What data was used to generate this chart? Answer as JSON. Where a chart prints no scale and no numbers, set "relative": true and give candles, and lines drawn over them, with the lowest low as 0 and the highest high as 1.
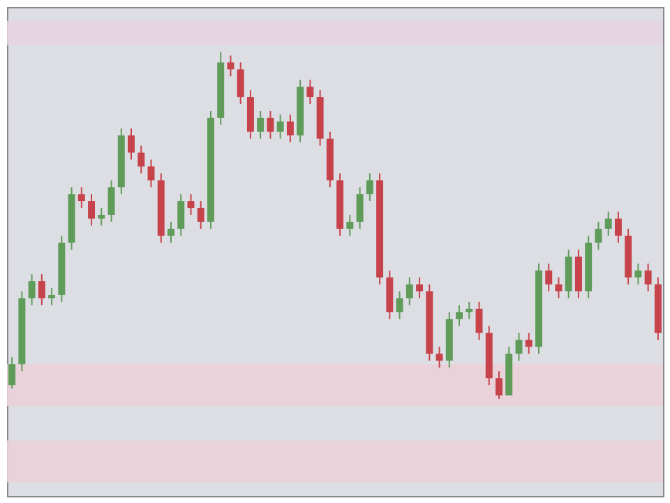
{
  "chart_data": {
    "type": "candlestick",
    "relative": true,
    "tick_labels": false,
    "grid": false,
    "categories": [
      null,
      null,
      null,
      null,
      null,
      null,
      null,
      null,
      null,
      null,
      null,
      null,
      null,
      null,
      null,
      null,
      null,
      null,
      null,
      null,
      null,
      null,
      null,
      null,
      null,
      null,
      null,
      null,
      null,
      null,
      null,
      null,
      null,
      null,
      null,
      null,
      null,
      null,
      null,
      null,
      null,
      null,
      null,
      null,
      null,
      null,
      null,
      null,
      null,
      null,
      null,
      null,
      null,
      null,
      null,
      null,
      null,
      null,
      null,
      null,
      null,
      null,
      null,
      null,
      null,
      null
    ],
    "colors": [
      "#5f9c5a",
      "#5f9c5a",
      "#5f9c5a",
      "#c7434b",
      "#5f9c5a",
      "#5f9c5a",
      "#5f9c5a",
      "#c7434b",
      "#c7434b",
      "#5f9c5a",
      "#5f9c5a",
      "#5f9c5a",
      "#c7434b",
      "#c7434b",
      "#c7434b",
      "#c7434b",
      "#5f9c5a",
      "#5f9c5a",
      "#c7434b",
      "#c7434b",
      "#5f9c5a",
      "#5f9c5a",
      "#c7434b",
      "#c7434b",
      "#c7434b",
      "#5f9c5a",
      "#c7434b",
      "#5f9c5a",
      "#c7434b",
      "#5f9c5a",
      "#c7434b",
      "#c7434b",
      "#c7434b",
      "#c7434b",
      "#5f9c5a",
      "#5f9c5a",
      "#5f9c5a",
      "#c7434b",
      "#c7434b",
      "#5f9c5a",
      "#5f9c5a",
      "#c7434b",
      "#c7434b",
      "#c7434b",
      "#5f9c5a",
      "#5f9c5a",
      "#5f9c5a",
      "#c7434b",
      "#c7434b",
      "#c7434b",
      "#5f9c5a",
      "#5f9c5a",
      "#c7434b",
      "#5f9c5a",
      "#c7434b",
      "#c7434b",
      "#5f9c5a",
      "#c7434b",
      "#5f9c5a",
      "#5f9c5a",
      "#5f9c5a",
      "#c7434b",
      "#c7434b",
      "#5f9c5a",
      "#c7434b",
      "#c7434b"
    ],
    "bands": [
      {
        "axis": "y",
        "from": 1.02,
        "to": 1.09,
        "color": "#e6d3e0"
      },
      {
        "axis": "y",
        "from": -0.02,
        "to": 0.1,
        "color": "#ead0d8"
      },
      {
        "axis": "y",
        "from": -0.24,
        "to": -0.12,
        "color": "#ead0d8"
      }
    ],
    "ohlc": [
      [
        0.04,
        0.12,
        0.03,
        0.1
      ],
      [
        0.1,
        0.31,
        0.08,
        0.29
      ],
      [
        0.29,
        0.36,
        0.27,
        0.34
      ],
      [
        0.34,
        0.36,
        0.27,
        0.29
      ],
      [
        0.29,
        0.32,
        0.27,
        0.3
      ],
      [
        0.3,
        0.47,
        0.28,
        0.45
      ],
      [
        0.45,
        0.61,
        0.43,
        0.59
      ],
      [
        0.59,
        0.61,
        0.55,
        0.57
      ],
      [
        0.57,
        0.59,
        0.5,
        0.52
      ],
      [
        0.52,
        0.55,
        0.5,
        0.53
      ],
      [
        0.53,
        0.63,
        0.51,
        0.61
      ],
      [
        0.61,
        0.78,
        0.59,
        0.76
      ],
      [
        0.76,
        0.78,
        0.69,
        0.71
      ],
      [
        0.71,
        0.73,
        0.65,
        0.67
      ],
      [
        0.67,
        0.69,
        0.61,
        0.63
      ],
      [
        0.63,
        0.65,
        0.45,
        0.47
      ],
      [
        0.47,
        0.51,
        0.45,
        0.49
      ],
      [
        0.49,
        0.59,
        0.47,
        0.57
      ],
      [
        0.57,
        0.59,
        0.53,
        0.55
      ],
      [
        0.55,
        0.57,
        0.49,
        0.51
      ],
      [
        0.51,
        0.83,
        0.49,
        0.81
      ],
      [
        0.81,
        1.0,
        0.79,
        0.97
      ],
      [
        0.97,
        0.99,
        0.93,
        0.95
      ],
      [
        0.95,
        0.97,
        0.85,
        0.87
      ],
      [
        0.87,
        0.89,
        0.75,
        0.77
      ],
      [
        0.77,
        0.83,
        0.75,
        0.81
      ],
      [
        0.81,
        0.83,
        0.75,
        0.77
      ],
      [
        0.77,
        0.82,
        0.75,
        0.8
      ],
      [
        0.8,
        0.82,
        0.74,
        0.76
      ],
      [
        0.76,
        0.92,
        0.74,
        0.9
      ],
      [
        0.9,
        0.92,
        0.85,
        0.87
      ],
      [
        0.87,
        0.89,
        0.73,
        0.75
      ],
      [
        0.75,
        0.77,
        0.61,
        0.63
      ],
      [
        0.63,
        0.65,
        0.47,
        0.49
      ],
      [
        0.49,
        0.53,
        0.47,
        0.51
      ],
      [
        0.51,
        0.61,
        0.49,
        0.59
      ],
      [
        0.59,
        0.65,
        0.57,
        0.63
      ],
      [
        0.63,
        0.65,
        0.33,
        0.35
      ],
      [
        0.35,
        0.37,
        0.23,
        0.25
      ],
      [
        0.25,
        0.31,
        0.23,
        0.29
      ],
      [
        0.29,
        0.35,
        0.27,
        0.33
      ],
      [
        0.33,
        0.35,
        0.29,
        0.31
      ],
      [
        0.31,
        0.33,
        0.11,
        0.13
      ],
      [
        0.13,
        0.15,
        0.09,
        0.11
      ],
      [
        0.11,
        0.25,
        0.09,
        0.23
      ],
      [
        0.23,
        0.27,
        0.21,
        0.25
      ],
      [
        0.25,
        0.28,
        0.23,
        0.26
      ],
      [
        0.26,
        0.28,
        0.17,
        0.19
      ],
      [
        0.19,
        0.21,
        0.04,
        0.06
      ],
      [
        0.06,
        0.08,
        0.0,
        0.01
      ],
      [
        0.01,
        0.15,
        0.01,
        0.13
      ],
      [
        0.13,
        0.19,
        0.11,
        0.17
      ],
      [
        0.17,
        0.19,
        0.13,
        0.15
      ],
      [
        0.15,
        0.39,
        0.13,
        0.37
      ],
      [
        0.37,
        0.39,
        0.31,
        0.33
      ],
      [
        0.33,
        0.35,
        0.29,
        0.31
      ],
      [
        0.31,
        0.43,
        0.29,
        0.41
      ],
      [
        0.41,
        0.43,
        0.29,
        0.31
      ],
      [
        0.31,
        0.47,
        0.29,
        0.45
      ],
      [
        0.45,
        0.51,
        0.43,
        0.49
      ],
      [
        0.49,
        0.54,
        0.47,
        0.52
      ],
      [
        0.52,
        0.54,
        0.45,
        0.47
      ],
      [
        0.47,
        0.49,
        0.33,
        0.35
      ],
      [
        0.35,
        0.39,
        0.33,
        0.37
      ],
      [
        0.37,
        0.39,
        0.31,
        0.33
      ],
      [
        0.33,
        0.35,
        0.17,
        0.19
      ]
    ]
  }
}
